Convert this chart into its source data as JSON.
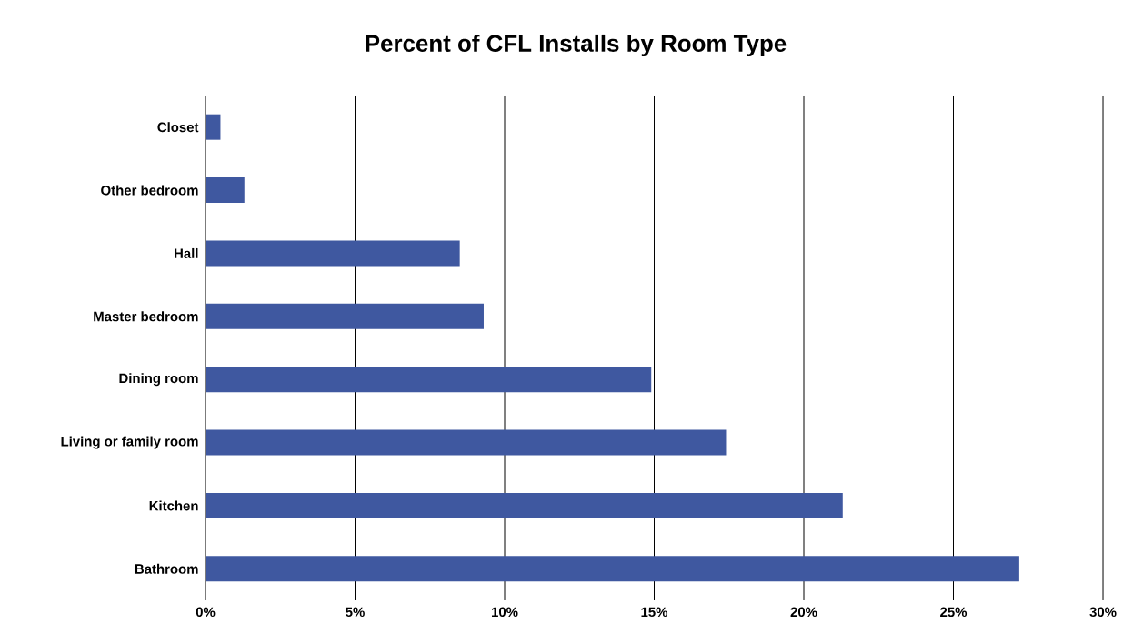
{
  "chart_data": {
    "type": "bar",
    "orientation": "horizontal",
    "title": "Percent of CFL Installs by Room Type",
    "categories": [
      "Closet",
      "Other bedroom",
      "Hall",
      "Master bedroom",
      "Dining room",
      "Living or family room",
      "Kitchen",
      "Bathroom"
    ],
    "values": [
      0.5,
      1.3,
      8.5,
      9.3,
      14.9,
      17.4,
      21.3,
      27.2
    ],
    "color": "#3f58a0",
    "xlim": [
      0,
      30
    ],
    "xticks": [
      {
        "value": 0,
        "label": "0%"
      },
      {
        "value": 5,
        "label": "5%"
      },
      {
        "value": 10,
        "label": "10%"
      },
      {
        "value": 15,
        "label": "15%"
      },
      {
        "value": 20,
        "label": "20%"
      },
      {
        "value": 25,
        "label": "25%"
      },
      {
        "value": 30,
        "label": "30%"
      }
    ],
    "grid": "x"
  }
}
